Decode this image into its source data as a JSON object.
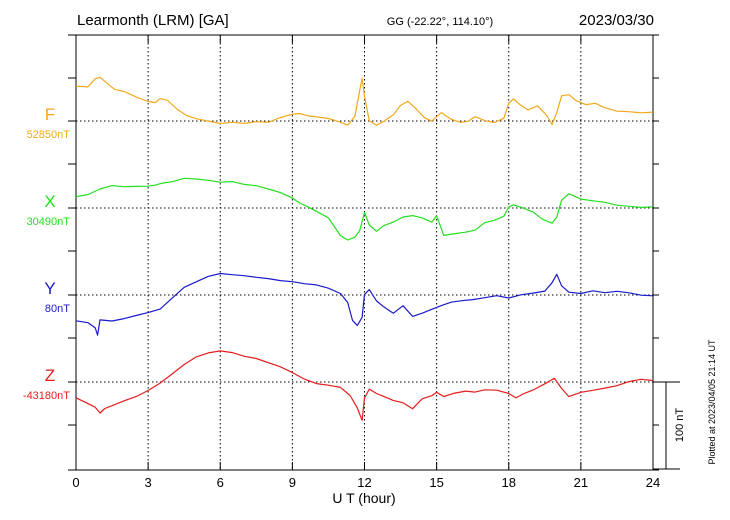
{
  "header": {
    "station": "Learmonth (LRM)  [GA]",
    "coords": "GG (-22.22°, 114.10°)",
    "date": "2023/03/30"
  },
  "footer": {
    "plotted": "Plotted at 2023/04/05 21:14 UT"
  },
  "colors": {
    "F": "#f2a81d",
    "X": "#22e01e",
    "Y": "#1a1acb",
    "Z": "#e61c1c",
    "axis": "#000000",
    "grid": "#000000"
  },
  "chart_data": {
    "type": "line",
    "xlabel": "U T (hour)",
    "xlim": [
      0,
      24
    ],
    "xticks": [
      0,
      3,
      6,
      9,
      12,
      15,
      18,
      21,
      24
    ],
    "scale_bar": "100 nT",
    "series": [
      {
        "name": "F",
        "baseline_label": "52850nT",
        "color_key": "F",
        "x": [
          0,
          0.5,
          0.8,
          1.0,
          1.3,
          1.6,
          2.0,
          2.5,
          3.0,
          3.3,
          3.5,
          3.8,
          4.2,
          4.6,
          5.0,
          5.5,
          6.0,
          6.5,
          7.0,
          7.5,
          8.0,
          8.5,
          9.0,
          9.3,
          9.6,
          10.0,
          10.5,
          11.0,
          11.3,
          11.6,
          11.8,
          11.9,
          12.0,
          12.2,
          12.5,
          12.8,
          13.2,
          13.5,
          13.8,
          14.1,
          14.5,
          14.8,
          15.2,
          15.6,
          16.0,
          16.3,
          16.6,
          17.0,
          17.4,
          17.8,
          18.0,
          18.2,
          18.5,
          18.8,
          19.2,
          19.6,
          19.8,
          20.0,
          20.2,
          20.5,
          20.8,
          21.2,
          21.6,
          22.0,
          22.5,
          23.0,
          23.5,
          24.0
        ],
        "y": [
          40,
          40,
          50,
          52,
          45,
          38,
          35,
          28,
          22,
          20,
          24,
          22,
          12,
          5,
          2,
          0,
          -2,
          0,
          -1,
          1,
          0,
          5,
          8,
          8,
          5,
          3,
          1,
          -3,
          -6,
          5,
          35,
          50,
          30,
          2,
          -3,
          1,
          8,
          18,
          22,
          14,
          2,
          -2,
          8,
          1,
          -2,
          0,
          6,
          2,
          0,
          5,
          22,
          26,
          18,
          12,
          16,
          4,
          -6,
          8,
          28,
          30,
          24,
          20,
          22,
          17,
          13,
          12,
          10,
          10
        ]
      },
      {
        "name": "X",
        "baseline_label": "30490nT",
        "color_key": "X",
        "x": [
          0,
          0.5,
          1.0,
          1.5,
          2.0,
          2.5,
          3.0,
          3.3,
          3.6,
          4.0,
          4.5,
          5.0,
          5.5,
          6.0,
          6.5,
          7.0,
          7.5,
          8.0,
          8.5,
          9.0,
          9.3,
          9.6,
          10.0,
          10.5,
          11.0,
          11.3,
          11.6,
          11.8,
          12.0,
          12.2,
          12.5,
          12.8,
          13.2,
          13.6,
          14.0,
          14.4,
          14.8,
          15.0,
          15.3,
          15.7,
          16.2,
          16.6,
          17.0,
          17.4,
          17.8,
          18.0,
          18.2,
          18.6,
          19.0,
          19.4,
          19.8,
          20.0,
          20.2,
          20.5,
          21.0,
          21.5,
          22.0,
          22.5,
          23.0,
          23.5,
          24.0
        ],
        "y": [
          12,
          14,
          20,
          24,
          23,
          24,
          25,
          27,
          30,
          32,
          36,
          35,
          33,
          30,
          30,
          26,
          24,
          20,
          16,
          10,
          5,
          2,
          -3,
          -10,
          -30,
          -35,
          -32,
          -25,
          -5,
          -20,
          -28,
          -22,
          -18,
          -12,
          -10,
          -12,
          -16,
          -8,
          -30,
          -28,
          -26,
          -24,
          -16,
          -14,
          -10,
          0,
          2,
          -2,
          -6,
          -14,
          -18,
          -10,
          10,
          18,
          12,
          10,
          8,
          4,
          2,
          0,
          0
        ]
      },
      {
        "name": "Y",
        "baseline_label": "80nT",
        "color_key": "Y",
        "x": [
          0,
          0.5,
          0.8,
          0.9,
          1.0,
          1.5,
          2.0,
          2.5,
          3.0,
          3.5,
          4.0,
          4.5,
          5.0,
          5.5,
          6.0,
          6.5,
          7.0,
          7.5,
          8.0,
          8.5,
          9.0,
          9.5,
          10.0,
          10.5,
          11.0,
          11.3,
          11.5,
          11.7,
          11.9,
          12.0,
          12.2,
          12.5,
          12.8,
          13.2,
          13.6,
          14.0,
          14.4,
          14.8,
          15.2,
          15.6,
          16.0,
          16.5,
          17.0,
          17.5,
          18.0,
          18.5,
          19.0,
          19.5,
          19.8,
          20.0,
          20.2,
          20.5,
          21.0,
          21.5,
          22.0,
          22.5,
          23.0,
          23.5,
          24.0
        ],
        "y": [
          -28,
          -30,
          -36,
          -45,
          -28,
          -30,
          -28,
          -25,
          -22,
          -18,
          -5,
          8,
          15,
          22,
          26,
          25,
          24,
          22,
          20,
          17,
          15,
          12,
          10,
          6,
          0,
          -10,
          -30,
          -35,
          -25,
          2,
          8,
          -5,
          -12,
          -20,
          -12,
          -25,
          -22,
          -18,
          -14,
          -10,
          -8,
          -6,
          -3,
          0,
          -2,
          2,
          4,
          6,
          15,
          24,
          10,
          2,
          0,
          3,
          1,
          3,
          2,
          0,
          0
        ]
      },
      {
        "name": "Z",
        "baseline_label": "-43180nT",
        "color_key": "Z",
        "x": [
          0,
          0.4,
          0.8,
          1.0,
          1.2,
          1.6,
          2.0,
          2.5,
          3.0,
          3.5,
          4.0,
          4.5,
          5.0,
          5.5,
          6.0,
          6.5,
          7.0,
          7.5,
          8.0,
          8.5,
          9.0,
          9.5,
          10.0,
          10.5,
          11.0,
          11.4,
          11.7,
          11.9,
          12.0,
          12.2,
          12.5,
          12.8,
          13.2,
          13.6,
          14.0,
          14.4,
          14.8,
          15.0,
          15.3,
          15.7,
          16.2,
          16.6,
          17.0,
          17.5,
          18.0,
          18.3,
          18.6,
          19.0,
          19.5,
          19.9,
          20.2,
          20.5,
          21.0,
          21.5,
          22.0,
          22.5,
          23.0,
          23.5,
          24.0
        ],
        "y": [
          -20,
          -25,
          -30,
          -36,
          -30,
          -25,
          -20,
          -15,
          -8,
          0,
          10,
          20,
          28,
          32,
          34,
          32,
          28,
          26,
          22,
          18,
          12,
          5,
          0,
          -2,
          -5,
          -15,
          -30,
          -45,
          -20,
          -10,
          -15,
          -18,
          -22,
          -24,
          -30,
          -18,
          -14,
          -10,
          -15,
          -12,
          -10,
          -12,
          -10,
          -11,
          -15,
          -20,
          -15,
          -10,
          -2,
          5,
          -6,
          -15,
          -10,
          -8,
          -6,
          -4,
          0,
          2,
          0
        ]
      }
    ]
  }
}
